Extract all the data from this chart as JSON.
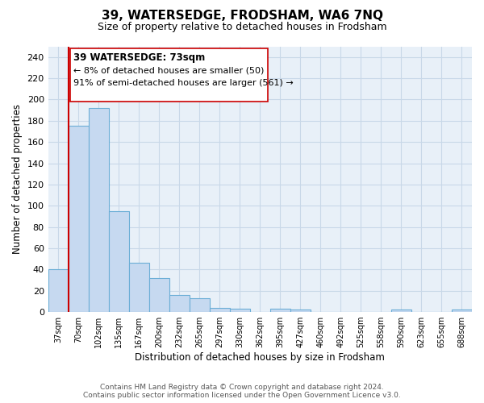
{
  "title": "39, WATERSEDGE, FRODSHAM, WA6 7NQ",
  "subtitle": "Size of property relative to detached houses in Frodsham",
  "xlabel": "Distribution of detached houses by size in Frodsham",
  "ylabel": "Number of detached properties",
  "bar_values": [
    40,
    175,
    192,
    95,
    46,
    32,
    16,
    13,
    4,
    3,
    0,
    3,
    2,
    0,
    0,
    0,
    0,
    2,
    0,
    0,
    2
  ],
  "bin_labels": [
    "37sqm",
    "70sqm",
    "102sqm",
    "135sqm",
    "167sqm",
    "200sqm",
    "232sqm",
    "265sqm",
    "297sqm",
    "330sqm",
    "362sqm",
    "395sqm",
    "427sqm",
    "460sqm",
    "492sqm",
    "525sqm",
    "558sqm",
    "590sqm",
    "623sqm",
    "655sqm",
    "688sqm"
  ],
  "bar_color": "#c6d9f0",
  "bar_edge_color": "#6baed6",
  "vline_color": "#cc0000",
  "vline_x": 0.5,
  "annotation_text_line1": "39 WATERSEDGE: 73sqm",
  "annotation_text_line2": "← 8% of detached houses are smaller (50)",
  "annotation_text_line3": "91% of semi-detached houses are larger (561) →",
  "box_edge_color": "#cc0000",
  "ylim": [
    0,
    250
  ],
  "yticks": [
    0,
    20,
    40,
    60,
    80,
    100,
    120,
    140,
    160,
    180,
    200,
    220,
    240
  ],
  "footer_line1": "Contains HM Land Registry data © Crown copyright and database right 2024.",
  "footer_line2": "Contains public sector information licensed under the Open Government Licence v3.0.",
  "bg_color": "#ffffff",
  "plot_bg_color": "#e8f0f8",
  "grid_color": "#c8d8e8"
}
